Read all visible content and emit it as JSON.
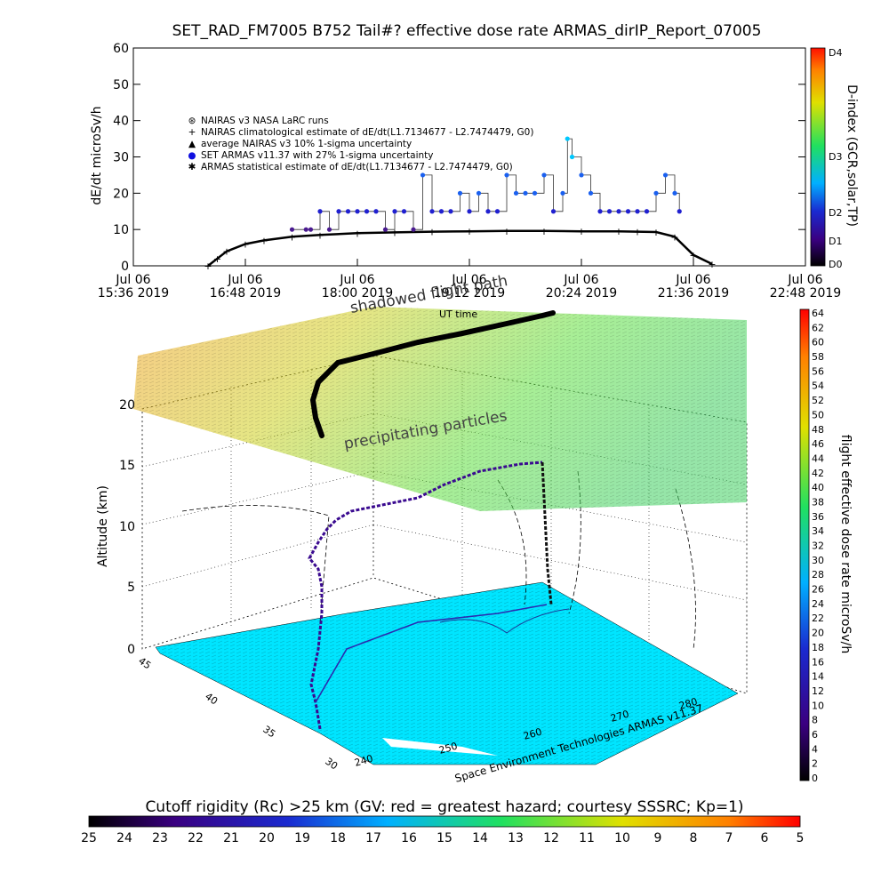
{
  "title": "SET_RAD_FM7005  B752 Tail#? effective dose rate ARMAS_dirIP_Report_07005",
  "chart_data": {
    "type": "line",
    "ylabel": "dE/dt microSv/h",
    "ylim": [
      0,
      60
    ],
    "yticks": [
      "0",
      "10",
      "20",
      "30",
      "40",
      "50",
      "60"
    ],
    "xticks": [
      {
        "l1": "Jul 06",
        "l2": "15:36 2019"
      },
      {
        "l1": "Jul 06",
        "l2": "16:48 2019"
      },
      {
        "l1": "Jul 06",
        "l2": "18:00 2019"
      },
      {
        "l1": "Jul 06",
        "l2": "19:12 2019"
      },
      {
        "l1": "Jul 06",
        "l2": "20:24 2019"
      },
      {
        "l1": "Jul 06",
        "l2": "21:36 2019"
      },
      {
        "l1": "Jul 06",
        "l2": "22:48 2019"
      }
    ],
    "xlabel": "UT time",
    "legend": [
      {
        "sym": "⊛",
        "text": "NAIRAS v3 NASA LaRC runs"
      },
      {
        "sym": "+",
        "text": "NAIRAS climatological estimate of dE/dt(L1.7134677 - L2.7474479, G0)"
      },
      {
        "sym": "▲",
        "text": "average NAIRAS v3 10% 1-sigma uncertainty"
      },
      {
        "sym": "●",
        "text": "SET ARMAS v11.37 with 27% 1-sigma uncertainty"
      },
      {
        "sym": "✱",
        "text": "ARMAS statistical estimate of dE/dt(L1.7134677 - L2.7474479, G0)"
      }
    ],
    "armas_series": {
      "name": "SET ARMAS v11.37 with 27% 1-sigma uncertainty",
      "x_hours": [
        17.3,
        17.45,
        17.5,
        17.6,
        17.7,
        17.8,
        17.9,
        18.0,
        18.1,
        18.2,
        18.3,
        18.4,
        18.5,
        18.6,
        18.7,
        18.8,
        18.9,
        19.0,
        19.1,
        19.2,
        19.3,
        19.4,
        19.5,
        19.6,
        19.7,
        19.8,
        19.9,
        20.0,
        20.1,
        20.2,
        20.25,
        20.3,
        20.4,
        20.5,
        20.6,
        20.7,
        20.8,
        20.9,
        21.0,
        21.1,
        21.2,
        21.3,
        21.4,
        21.45
      ],
      "values": [
        10,
        10,
        10,
        15,
        10,
        15,
        15,
        15,
        15,
        15,
        10,
        15,
        15,
        10,
        25,
        15,
        15,
        15,
        20,
        15,
        20,
        15,
        15,
        25,
        20,
        20,
        20,
        25,
        15,
        20,
        35,
        30,
        25,
        20,
        15,
        15,
        15,
        15,
        15,
        15,
        20,
        25,
        20,
        15
      ]
    },
    "nairas_series": {
      "name": "NAIRAS v3 NASA LaRC runs",
      "x_hours": [
        16.4,
        16.5,
        16.6,
        16.8,
        17.0,
        17.3,
        17.6,
        18.0,
        18.4,
        18.8,
        19.2,
        19.6,
        20.0,
        20.4,
        20.8,
        21.0,
        21.2,
        21.4,
        21.6,
        21.8
      ],
      "values": [
        0,
        2,
        4,
        6,
        7,
        8,
        8.5,
        9,
        9.2,
        9.4,
        9.5,
        9.6,
        9.6,
        9.5,
        9.5,
        9.4,
        9.3,
        8,
        3,
        0.5
      ]
    },
    "dindex_colorbar": {
      "label": "D-index (GCR,solar,TP)",
      "ticks": [
        "D4",
        "D3",
        "D2",
        "D1",
        "D0"
      ]
    },
    "dose_colorbar": {
      "label": "flight effective dose rate microSv/h",
      "ticks": [
        "64",
        "62",
        "60",
        "58",
        "56",
        "54",
        "52",
        "50",
        "48",
        "46",
        "44",
        "42",
        "40",
        "38",
        "36",
        "34",
        "32",
        "30",
        "28",
        "26",
        "24",
        "22",
        "20",
        "18",
        "16",
        "14",
        "12",
        "10",
        "8",
        "6",
        "4",
        "2",
        "0"
      ]
    },
    "cutoff_colorbar": {
      "label": "Cutoff rigidity (Rc) >25 km (GV: red = greatest hazard; courtesy SSSRC; Kp=1)",
      "ticks": [
        "25",
        "24",
        "23",
        "22",
        "21",
        "20",
        "19",
        "18",
        "17",
        "16",
        "15",
        "14",
        "13",
        "12",
        "11",
        "10",
        "9",
        "8",
        "7",
        "6",
        "5"
      ]
    },
    "panel3d": {
      "zlabel": "Altitude (km)",
      "zticks": [
        "0",
        "5",
        "10",
        "15",
        "20"
      ],
      "lat_ticks": [
        "45",
        "40",
        "35",
        "30"
      ],
      "lon_ticks": [
        "240",
        "250",
        "260",
        "270",
        "280"
      ],
      "label_shadowed": "shadowed flight path",
      "label_particles": "precipitating particles",
      "credit": "Space Environment Technologies ARMAS v11.37"
    }
  },
  "colors": {
    "map": "#00e5ff",
    "armas": "#1010e0",
    "nairas": "#000000"
  }
}
